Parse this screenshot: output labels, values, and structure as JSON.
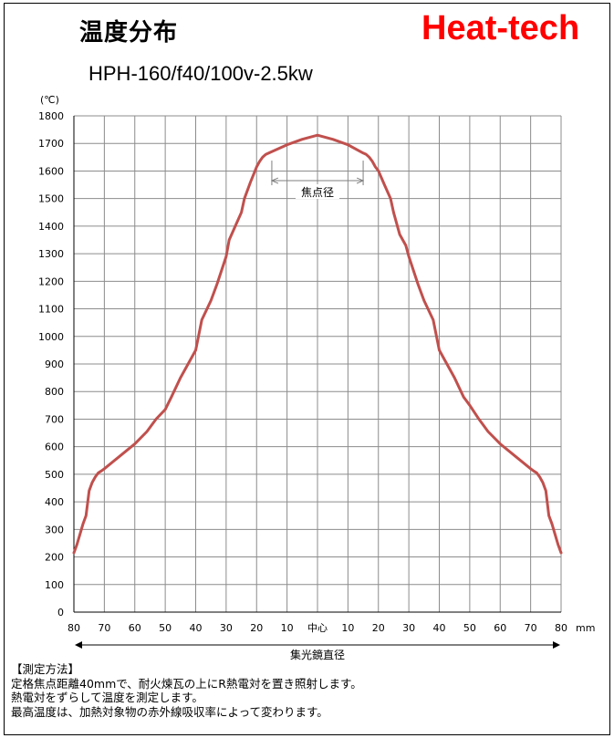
{
  "header": {
    "title": "温度分布",
    "brand": "Heat-tech",
    "subtitle": "HPH-160/f40/100v-2.5kw"
  },
  "chart_data": {
    "type": "line",
    "title": "温度分布",
    "subtitle": "HPH-160/f40/100v-2.5kw",
    "ylabel": "(℃)",
    "xlabel": "集光鏡直径",
    "x_unit": "mm",
    "ylim": [
      0,
      1800
    ],
    "y_ticks": [
      0,
      100,
      200,
      300,
      400,
      500,
      600,
      700,
      800,
      900,
      1000,
      1100,
      1200,
      1300,
      1400,
      1500,
      1600,
      1700,
      1800
    ],
    "xlim": [
      -80,
      80
    ],
    "x_ticks": [
      -80,
      -70,
      -60,
      -50,
      -40,
      -30,
      -20,
      -10,
      0,
      10,
      20,
      30,
      40,
      50,
      60,
      70,
      80
    ],
    "x_tick_labels": [
      "80",
      "70",
      "60",
      "50",
      "40",
      "30",
      "20",
      "10",
      "中心",
      "10",
      "20",
      "30",
      "40",
      "50",
      "60",
      "70",
      "80"
    ],
    "grid": true,
    "line_color": "#c0504d",
    "annotation": {
      "label": "焦点径",
      "x_from": -15,
      "x_to": 15,
      "y": 1555
    },
    "series": [
      {
        "x": [
          -80,
          -79,
          -77,
          -76,
          -75,
          -74,
          -73,
          -72,
          -71,
          -70,
          -65,
          -60,
          -56,
          -55,
          -53,
          -50,
          -48,
          -45,
          -43,
          -40,
          -38,
          -35,
          -33,
          -30,
          -29,
          -27,
          -25,
          -24,
          -22,
          -20,
          -19,
          -18,
          -17,
          -16,
          -15,
          -10,
          -5,
          0,
          5,
          10,
          15,
          16,
          17,
          18,
          19,
          20,
          22,
          24,
          25,
          27,
          29,
          30,
          33,
          35,
          38,
          40,
          43,
          45,
          48,
          50,
          53,
          55,
          56,
          60,
          65,
          70,
          71,
          72,
          73,
          74,
          75,
          76,
          77,
          79,
          80
        ],
        "y": [
          215,
          245,
          320,
          350,
          440,
          470,
          490,
          505,
          512,
          520,
          565,
          610,
          655,
          670,
          700,
          735,
          780,
          850,
          890,
          950,
          1060,
          1130,
          1190,
          1290,
          1350,
          1400,
          1450,
          1500,
          1560,
          1615,
          1635,
          1650,
          1660,
          1665,
          1670,
          1695,
          1715,
          1730,
          1715,
          1695,
          1665,
          1660,
          1650,
          1635,
          1615,
          1600,
          1550,
          1500,
          1450,
          1370,
          1330,
          1290,
          1190,
          1130,
          1060,
          950,
          890,
          850,
          780,
          750,
          700,
          670,
          655,
          610,
          565,
          520,
          512,
          505,
          490,
          470,
          440,
          350,
          320,
          245,
          215
        ]
      }
    ]
  },
  "notes": {
    "heading": "【測定方法】",
    "line1": "定格焦点距離40mmで、耐火煉瓦の上にR熱電対を置き照射します。",
    "line2": "熱電対をずらして温度を測定します。",
    "line3": "最高温度は、加熱対象物の赤外線吸収率によって変わります。"
  }
}
